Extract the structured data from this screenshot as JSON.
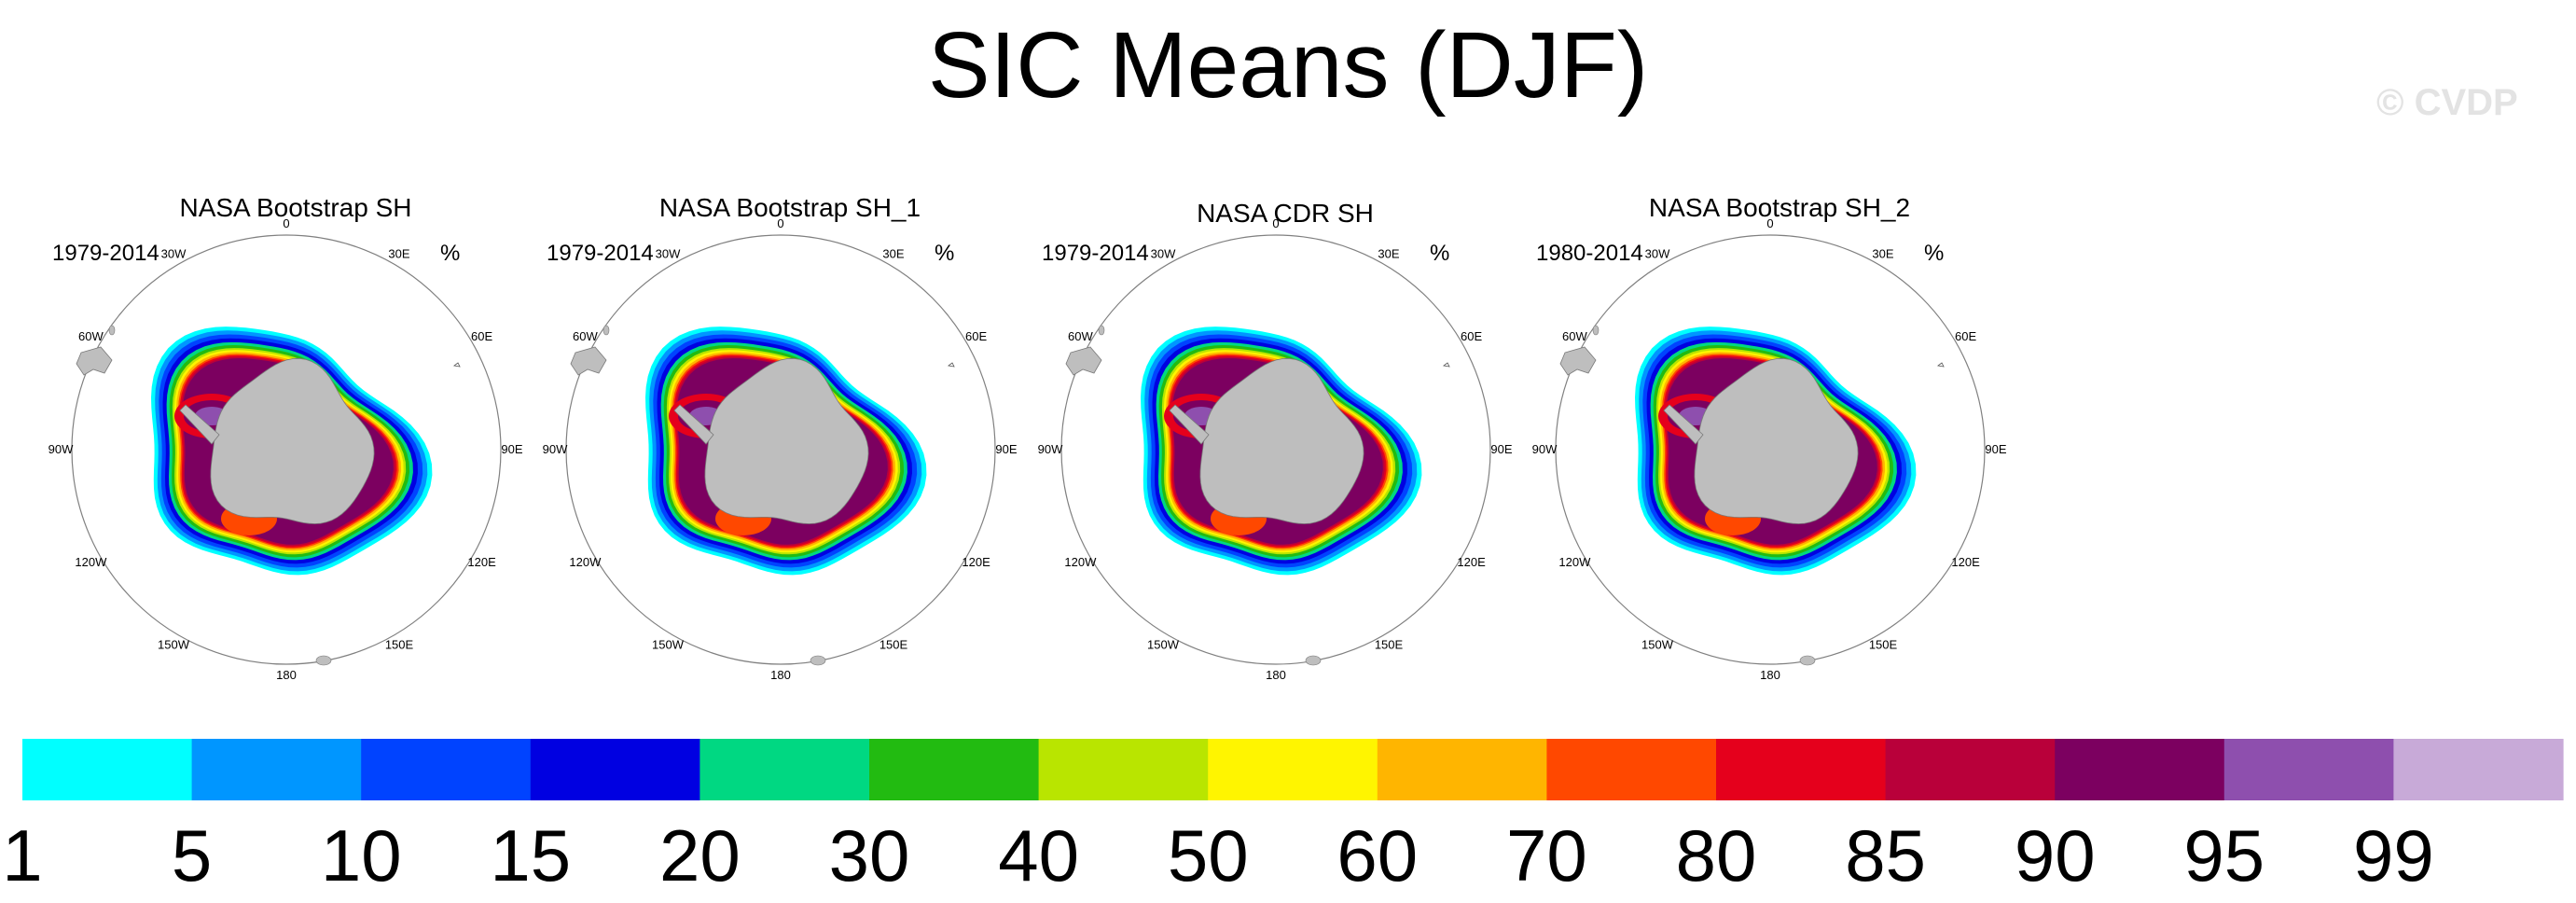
{
  "title": "SIC Means (DJF)",
  "watermark": "© CVDP",
  "units": "%",
  "longitude_labels": {
    "l0": "0",
    "l30e": "30E",
    "l60e": "60E",
    "l90e": "90E",
    "l120e": "120E",
    "l150e": "150E",
    "l180": "180",
    "l150w": "150W",
    "l120w": "120W",
    "l90w": "90W",
    "l60w": "60W",
    "l30w": "30W"
  },
  "panels": [
    {
      "title": "NASA Bootstrap SH",
      "period": "1979-2014"
    },
    {
      "title": "NASA Bootstrap SH_1",
      "period": "1979-2014"
    },
    {
      "title": "NASA CDR SH",
      "period": "1979-2014"
    },
    {
      "title": "NASA Bootstrap SH_2",
      "period": "1980-2014"
    }
  ],
  "colorbar": {
    "labels": [
      "1",
      "5",
      "10",
      "15",
      "20",
      "30",
      "40",
      "50",
      "60",
      "70",
      "80",
      "85",
      "90",
      "95",
      "99"
    ],
    "colors": [
      "#00ffff",
      "#0096ff",
      "#0043ff",
      "#0000e1",
      "#00d882",
      "#22bb11",
      "#b9e500",
      "#fff500",
      "#ffb500",
      "#ff4800",
      "#e5001c",
      "#b9003a",
      "#7c0060",
      "#8e4fae",
      "#c8aad8"
    ]
  },
  "map_colors": {
    "land": "#bebebe",
    "coast": "#7a7a7a"
  }
}
